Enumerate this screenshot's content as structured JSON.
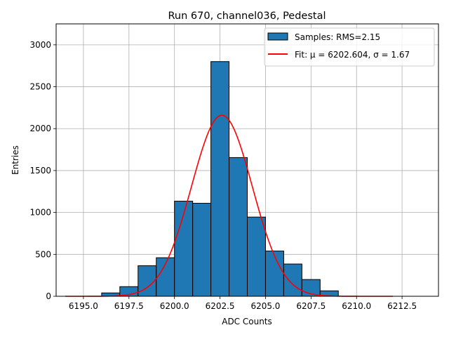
{
  "chart_data": {
    "type": "bar",
    "title": "Run 670, channel036, Pedestal",
    "xlabel": "ADC Counts",
    "ylabel": "Entries",
    "xlim": [
      6193.5,
      6214.5
    ],
    "ylim": [
      0,
      3250
    ],
    "xticks": [
      6195.0,
      6197.5,
      6200.0,
      6202.5,
      6205.0,
      6207.5,
      6210.0,
      6212.5
    ],
    "xtick_labels": [
      "6195.0",
      "6197.5",
      "6200.0",
      "6202.5",
      "6205.0",
      "6207.5",
      "6210.0",
      "6212.5"
    ],
    "yticks": [
      0,
      500,
      1000,
      1500,
      2000,
      2500,
      3000
    ],
    "ytick_labels": [
      "0",
      "500",
      "1000",
      "1500",
      "2000",
      "2500",
      "3000"
    ],
    "grid": true,
    "legend_position": "top-right",
    "histogram": {
      "name": "Samples: RMS=2.15",
      "color": "#1f77b4",
      "edge_color": "#000000",
      "bin_edges": [
        6196,
        6197,
        6198,
        6199,
        6200,
        6201,
        6202,
        6203,
        6204,
        6205,
        6206,
        6207,
        6208,
        6209
      ],
      "counts": [
        40,
        115,
        365,
        460,
        1135,
        1110,
        2800,
        1655,
        945,
        540,
        385,
        200,
        65
      ]
    },
    "fit": {
      "name": "Fit: μ = 6202.604, σ = 1.67",
      "color": "#ff0000",
      "mu": 6202.604,
      "sigma": 1.67,
      "amplitude": 2160,
      "x_range": [
        6194,
        6212
      ]
    }
  }
}
